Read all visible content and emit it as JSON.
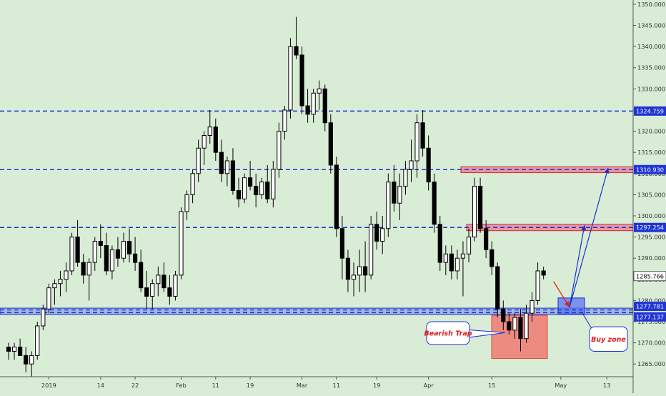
{
  "chart_data": {
    "type": "candlestick",
    "x_tick_labels": [
      "2019",
      "14",
      "22",
      "Feb",
      "11",
      "19",
      "Mar",
      "11",
      "19",
      "Apr",
      "15",
      "May",
      "13"
    ],
    "y_tick_labels": [
      "1265.000",
      "1270.000",
      "1275.000",
      "1280.000",
      "1285.000",
      "1290.000",
      "1295.000",
      "1300.000",
      "1305.000",
      "1310.000",
      "1315.000",
      "1320.000",
      "1325.000",
      "1330.000",
      "1335.000",
      "1340.000",
      "1345.000",
      "1350.000"
    ],
    "ylim": [
      1262,
      1351
    ],
    "grid": false,
    "last_price": "1285.766",
    "levels": [
      {
        "value": 1324.759,
        "label": "1324.759",
        "style": "dashed"
      },
      {
        "value": 1310.93,
        "label": "1310.930",
        "style": "dashed"
      },
      {
        "value": 1297.254,
        "label": "1297.254",
        "style": "dashed"
      },
      {
        "value": 1277.781,
        "label": "1277.781",
        "style": "dashed"
      },
      {
        "value": 1277.137,
        "label": "1277.137",
        "style": "dashed"
      }
    ],
    "candles": [
      [
        1269,
        1270,
        1266,
        1268
      ],
      [
        1268,
        1270,
        1266,
        1269
      ],
      [
        1269,
        1271,
        1267,
        1267
      ],
      [
        1267,
        1269,
        1263,
        1265
      ],
      [
        1265,
        1268,
        1262,
        1267
      ],
      [
        1267,
        1275,
        1266,
        1274
      ],
      [
        1274,
        1279,
        1273,
        1278
      ],
      [
        1278,
        1284,
        1277,
        1283
      ],
      [
        1283,
        1285,
        1279,
        1284
      ],
      [
        1284,
        1287,
        1281,
        1285
      ],
      [
        1285,
        1289,
        1282,
        1287
      ],
      [
        1287,
        1296,
        1286,
        1295
      ],
      [
        1295,
        1299,
        1288,
        1289
      ],
      [
        1289,
        1291,
        1284,
        1286
      ],
      [
        1286,
        1290,
        1280,
        1289
      ],
      [
        1289,
        1295,
        1287,
        1294
      ],
      [
        1294,
        1298,
        1290,
        1293
      ],
      [
        1293,
        1296,
        1286,
        1287
      ],
      [
        1287,
        1293,
        1285,
        1292
      ],
      [
        1292,
        1295,
        1288,
        1290
      ],
      [
        1290,
        1296,
        1289,
        1294
      ],
      [
        1294,
        1297,
        1289,
        1291
      ],
      [
        1291,
        1295,
        1287,
        1289
      ],
      [
        1289,
        1292,
        1282,
        1283
      ],
      [
        1283,
        1287,
        1278,
        1281
      ],
      [
        1281,
        1285,
        1278,
        1284
      ],
      [
        1284,
        1288,
        1281,
        1286
      ],
      [
        1286,
        1289,
        1282,
        1283
      ],
      [
        1283,
        1286,
        1279,
        1281
      ],
      [
        1281,
        1287,
        1280,
        1286
      ],
      [
        1286,
        1302,
        1285,
        1301
      ],
      [
        1301,
        1306,
        1299,
        1305
      ],
      [
        1305,
        1311,
        1303,
        1310
      ],
      [
        1310,
        1318,
        1308,
        1316
      ],
      [
        1316,
        1320,
        1312,
        1319
      ],
      [
        1319,
        1325,
        1317,
        1321
      ],
      [
        1321,
        1323,
        1313,
        1315
      ],
      [
        1315,
        1318,
        1308,
        1310
      ],
      [
        1310,
        1314,
        1307,
        1313
      ],
      [
        1313,
        1316,
        1305,
        1306
      ],
      [
        1306,
        1309,
        1302,
        1304
      ],
      [
        1304,
        1310,
        1303,
        1309
      ],
      [
        1309,
        1313,
        1306,
        1307
      ],
      [
        1307,
        1310,
        1302,
        1305
      ],
      [
        1305,
        1309,
        1304,
        1308
      ],
      [
        1308,
        1312,
        1303,
        1304
      ],
      [
        1304,
        1313,
        1302,
        1311
      ],
      [
        1311,
        1322,
        1309,
        1320
      ],
      [
        1320,
        1326,
        1318,
        1325
      ],
      [
        1325,
        1342,
        1323,
        1340
      ],
      [
        1340,
        1347,
        1337,
        1338
      ],
      [
        1338,
        1340,
        1324,
        1326
      ],
      [
        1326,
        1330,
        1322,
        1324
      ],
      [
        1324,
        1330,
        1322,
        1329
      ],
      [
        1329,
        1332,
        1325,
        1330
      ],
      [
        1330,
        1331,
        1320,
        1322
      ],
      [
        1322,
        1324,
        1310,
        1312
      ],
      [
        1312,
        1314,
        1295,
        1297
      ],
      [
        1297,
        1300,
        1285,
        1290
      ],
      [
        1290,
        1292,
        1282,
        1285
      ],
      [
        1285,
        1289,
        1281,
        1286
      ],
      [
        1286,
        1292,
        1282,
        1288
      ],
      [
        1288,
        1294,
        1282,
        1286
      ],
      [
        1286,
        1300,
        1285,
        1298
      ],
      [
        1298,
        1301,
        1292,
        1294
      ],
      [
        1294,
        1300,
        1291,
        1297
      ],
      [
        1297,
        1310,
        1295,
        1308
      ],
      [
        1308,
        1312,
        1301,
        1303
      ],
      [
        1303,
        1310,
        1299,
        1307
      ],
      [
        1307,
        1313,
        1305,
        1311
      ],
      [
        1311,
        1318,
        1308,
        1313
      ],
      [
        1313,
        1324,
        1309,
        1322
      ],
      [
        1322,
        1325,
        1314,
        1316
      ],
      [
        1316,
        1319,
        1306,
        1308
      ],
      [
        1308,
        1310,
        1296,
        1298
      ],
      [
        1298,
        1300,
        1287,
        1289
      ],
      [
        1289,
        1293,
        1286,
        1291
      ],
      [
        1291,
        1293,
        1285,
        1287
      ],
      [
        1287,
        1292,
        1285,
        1290
      ],
      [
        1290,
        1294,
        1281,
        1291
      ],
      [
        1291,
        1297,
        1289,
        1295
      ],
      [
        1295,
        1309,
        1294,
        1307
      ],
      [
        1307,
        1309,
        1296,
        1297
      ],
      [
        1297,
        1299,
        1290,
        1292
      ],
      [
        1292,
        1294,
        1286,
        1288
      ],
      [
        1288,
        1289,
        1276,
        1278
      ],
      [
        1278,
        1280,
        1273,
        1275
      ],
      [
        1275,
        1277,
        1272,
        1273
      ],
      [
        1273,
        1277,
        1271,
        1276
      ],
      [
        1276,
        1278,
        1268,
        1271
      ],
      [
        1271,
        1279,
        1270,
        1277
      ],
      [
        1277,
        1282,
        1275,
        1280
      ],
      [
        1280,
        1289,
        1279,
        1287
      ],
      [
        1287,
        1288,
        1285,
        1286
      ]
    ],
    "annotations": {
      "bearish_trap": "Bearish Trap",
      "buy_zone": "Buy zone"
    }
  }
}
